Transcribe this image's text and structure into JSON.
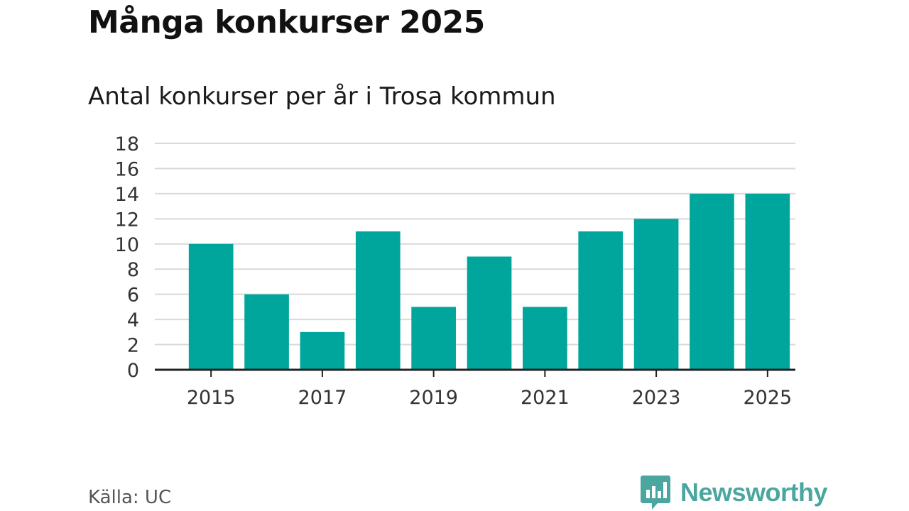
{
  "title": "Många konkurser 2025",
  "subtitle": "Antal konkurser per år i Trosa kommun",
  "source": "Källa: UC",
  "brand": "Newsworthy",
  "colors": {
    "bar": "#00a69c",
    "grid": "#d9d9d9",
    "axis": "#222222",
    "brand": "#4ca6a0"
  },
  "chart_data": {
    "type": "bar",
    "title": "Många konkurser 2025",
    "subtitle": "Antal konkurser per år i Trosa kommun",
    "categories": [
      "2015",
      "2016",
      "2017",
      "2018",
      "2019",
      "2020",
      "2021",
      "2022",
      "2023",
      "2024",
      "2025"
    ],
    "values": [
      10,
      6,
      3,
      11,
      5,
      9,
      5,
      11,
      12,
      14,
      14
    ],
    "x_tick_labels": [
      "2015",
      "2017",
      "2019",
      "2021",
      "2023",
      "2025"
    ],
    "y_ticks": [
      0,
      2,
      4,
      6,
      8,
      10,
      12,
      14,
      16,
      18
    ],
    "ylim": [
      0,
      18
    ],
    "xlabel": "",
    "ylabel": "",
    "grid": true,
    "legend": "none"
  }
}
